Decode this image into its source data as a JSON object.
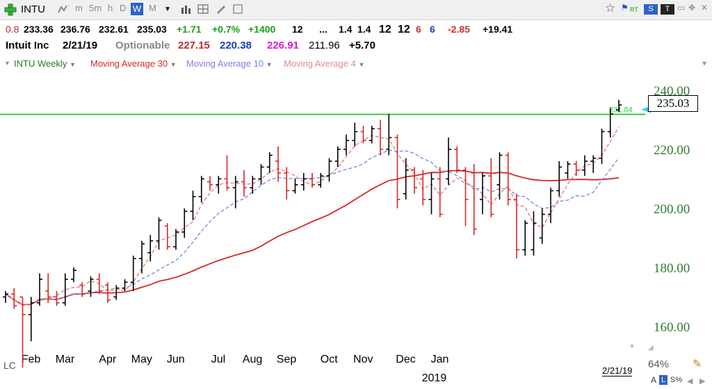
{
  "toolbar": {
    "symbol": "INTU",
    "periods": [
      "m",
      "5m",
      "h",
      "D",
      "W",
      "M"
    ],
    "active_period": "W",
    "right_buttons": [
      "RT",
      "S",
      "T"
    ]
  },
  "quote_line": {
    "items": [
      {
        "text": "0.8",
        "color": "#c62828"
      },
      {
        "text": "233.36",
        "color": "#000000"
      },
      {
        "text": "236.76",
        "color": "#000000"
      },
      {
        "text": "232.61",
        "color": "#000000"
      },
      {
        "text": "235.03",
        "color": "#000000"
      },
      {
        "text": "+1.71",
        "color": "#1b9e1b"
      },
      {
        "text": "+0.7%",
        "color": "#1b9e1b"
      },
      {
        "text": "+1400",
        "color": "#1b9e1b"
      },
      {
        "text": "12",
        "color": "#000000"
      },
      {
        "text": "...",
        "color": "#000000"
      },
      {
        "text": "1.4",
        "color": "#000000"
      },
      {
        "text": "1.4",
        "color": "#000000"
      },
      {
        "text": "12",
        "color": "#000000"
      },
      {
        "text": "12",
        "color": "#000000"
      },
      {
        "text": "6",
        "color": "#d32f2f"
      },
      {
        "text": "6",
        "color": "#1a3fc0"
      },
      {
        "text": "-2.85",
        "color": "#d32f2f"
      },
      {
        "text": "+19.41",
        "color": "#000000"
      }
    ]
  },
  "info_line": {
    "name": "Intuit Inc",
    "date": "2/21/19",
    "optionable": "Optionable",
    "v1": "227.15",
    "v2": "220.38",
    "v3": "226.91",
    "v4": "211.96",
    "v5": "+5.70"
  },
  "legend": {
    "series_label": "INTU Weekly",
    "ma30_label": "Moving Average 30",
    "ma10_label": "Moving Average 10",
    "ma4_label": "Moving Average 4"
  },
  "colors": {
    "ma30": "#d62728",
    "ma10": "#7b7fe0",
    "ma4": "#e57373",
    "up_bar": "#000000",
    "down_bar": "#d62728",
    "hline": "#2ecc40",
    "ylabel": "#2e7d32"
  },
  "footer": {
    "date_box": "2/21/19",
    "zoom": "64%",
    "scale_buttons": [
      "A",
      "L",
      "S%"
    ],
    "corner_label": "LC"
  },
  "chart_data": {
    "type": "ohlc",
    "period": "weekly",
    "ylim": [
      145,
      246
    ],
    "yticks": [
      160,
      180,
      200,
      220,
      240
    ],
    "ytick_labels": [
      "160.00",
      "180.00",
      "200.00",
      "220.00",
      "240.00"
    ],
    "month_labels": [
      "Feb",
      "Mar",
      "Apr",
      "May",
      "Jun",
      "Jul",
      "Aug",
      "Sep",
      "Oct",
      "Nov",
      "Dec",
      "Jan"
    ],
    "month_start_bars": [
      2,
      6,
      11,
      15,
      19,
      24,
      28,
      32,
      37,
      41,
      46,
      50
    ],
    "year_label": "2019",
    "year_label_bar": 50,
    "horizontal_line": {
      "value": 231.84,
      "label": "231.84"
    },
    "last_price": "235.03",
    "bars": [
      {
        "o": 170,
        "h": 172,
        "l": 168,
        "c": 171
      },
      {
        "o": 171,
        "h": 173,
        "l": 166,
        "c": 167
      },
      {
        "o": 170,
        "h": 170,
        "l": 146,
        "c": 164
      },
      {
        "o": 164,
        "h": 170,
        "l": 155,
        "c": 168
      },
      {
        "o": 168,
        "h": 178,
        "l": 167,
        "c": 176
      },
      {
        "o": 172,
        "h": 178,
        "l": 168,
        "c": 170
      },
      {
        "o": 170,
        "h": 172,
        "l": 167,
        "c": 168
      },
      {
        "o": 168,
        "h": 178,
        "l": 167,
        "c": 176
      },
      {
        "o": 176,
        "h": 180,
        "l": 175,
        "c": 179
      },
      {
        "o": 174,
        "h": 175,
        "l": 170,
        "c": 171
      },
      {
        "o": 172,
        "h": 177,
        "l": 170,
        "c": 176
      },
      {
        "o": 176,
        "h": 178,
        "l": 171,
        "c": 172
      },
      {
        "o": 174,
        "h": 175,
        "l": 168,
        "c": 169
      },
      {
        "o": 170,
        "h": 174,
        "l": 169,
        "c": 173
      },
      {
        "o": 173,
        "h": 176,
        "l": 172,
        "c": 175
      },
      {
        "o": 175,
        "h": 184,
        "l": 172,
        "c": 183
      },
      {
        "o": 183,
        "h": 189,
        "l": 178,
        "c": 188
      },
      {
        "o": 185,
        "h": 191,
        "l": 182,
        "c": 189
      },
      {
        "o": 189,
        "h": 197,
        "l": 186,
        "c": 196
      },
      {
        "o": 194,
        "h": 195,
        "l": 186,
        "c": 187
      },
      {
        "o": 187,
        "h": 193,
        "l": 186,
        "c": 192
      },
      {
        "o": 192,
        "h": 200,
        "l": 190,
        "c": 199
      },
      {
        "o": 199,
        "h": 206,
        "l": 196,
        "c": 204
      },
      {
        "o": 204,
        "h": 211,
        "l": 202,
        "c": 210
      },
      {
        "o": 209,
        "h": 211,
        "l": 206,
        "c": 208
      },
      {
        "o": 208,
        "h": 211,
        "l": 205,
        "c": 210
      },
      {
        "o": 210,
        "h": 218,
        "l": 206,
        "c": 207
      },
      {
        "o": 207,
        "h": 211,
        "l": 200,
        "c": 209
      },
      {
        "o": 209,
        "h": 213,
        "l": 204,
        "c": 207
      },
      {
        "o": 207,
        "h": 211,
        "l": 205,
        "c": 210
      },
      {
        "o": 210,
        "h": 215,
        "l": 208,
        "c": 214
      },
      {
        "o": 214,
        "h": 219,
        "l": 212,
        "c": 218
      },
      {
        "o": 216,
        "h": 221,
        "l": 209,
        "c": 212
      },
      {
        "o": 212,
        "h": 214,
        "l": 203,
        "c": 206
      },
      {
        "o": 206,
        "h": 210,
        "l": 205,
        "c": 208
      },
      {
        "o": 208,
        "h": 212,
        "l": 206,
        "c": 210
      },
      {
        "o": 210,
        "h": 212,
        "l": 207,
        "c": 208
      },
      {
        "o": 208,
        "h": 212,
        "l": 207,
        "c": 211
      },
      {
        "o": 211,
        "h": 217,
        "l": 209,
        "c": 216
      },
      {
        "o": 216,
        "h": 221,
        "l": 214,
        "c": 220
      },
      {
        "o": 220,
        "h": 225,
        "l": 218,
        "c": 223
      },
      {
        "o": 223,
        "h": 229,
        "l": 221,
        "c": 226
      },
      {
        "o": 226,
        "h": 228,
        "l": 222,
        "c": 223
      },
      {
        "o": 223,
        "h": 228,
        "l": 222,
        "c": 227
      },
      {
        "o": 227,
        "h": 230,
        "l": 218,
        "c": 220
      },
      {
        "o": 220,
        "h": 232,
        "l": 218,
        "c": 224
      },
      {
        "o": 224,
        "h": 225,
        "l": 200,
        "c": 203
      },
      {
        "o": 205,
        "h": 217,
        "l": 203,
        "c": 213
      },
      {
        "o": 213,
        "h": 214,
        "l": 205,
        "c": 207
      },
      {
        "o": 210,
        "h": 213,
        "l": 201,
        "c": 203
      },
      {
        "o": 203,
        "h": 212,
        "l": 198,
        "c": 210
      },
      {
        "o": 210,
        "h": 214,
        "l": 197,
        "c": 198
      },
      {
        "o": 210,
        "h": 224,
        "l": 208,
        "c": 220
      },
      {
        "o": 220,
        "h": 221,
        "l": 212,
        "c": 213
      },
      {
        "o": 213,
        "h": 214,
        "l": 194,
        "c": 203
      },
      {
        "o": 212,
        "h": 215,
        "l": 191,
        "c": 193
      },
      {
        "o": 203,
        "h": 212,
        "l": 198,
        "c": 211
      },
      {
        "o": 211,
        "h": 217,
        "l": 197,
        "c": 198
      },
      {
        "o": 208,
        "h": 219,
        "l": 203,
        "c": 218
      },
      {
        "o": 218,
        "h": 219,
        "l": 201,
        "c": 203
      },
      {
        "o": 203,
        "h": 205,
        "l": 183,
        "c": 186
      },
      {
        "o": 186,
        "h": 196,
        "l": 184,
        "c": 195
      },
      {
        "o": 186,
        "h": 199,
        "l": 184,
        "c": 195
      },
      {
        "o": 190,
        "h": 200,
        "l": 188,
        "c": 198
      },
      {
        "o": 198,
        "h": 207,
        "l": 195,
        "c": 206
      },
      {
        "o": 206,
        "h": 216,
        "l": 204,
        "c": 214
      },
      {
        "o": 212,
        "h": 216,
        "l": 210,
        "c": 215
      },
      {
        "o": 215,
        "h": 216,
        "l": 211,
        "c": 213
      },
      {
        "o": 213,
        "h": 218,
        "l": 211,
        "c": 216
      },
      {
        "o": 216,
        "h": 218,
        "l": 212,
        "c": 217
      },
      {
        "o": 217,
        "h": 227,
        "l": 215,
        "c": 226
      },
      {
        "o": 226,
        "h": 234,
        "l": 224,
        "c": 232
      },
      {
        "o": 233.36,
        "h": 236.76,
        "l": 232.61,
        "c": 235.03
      }
    ]
  }
}
